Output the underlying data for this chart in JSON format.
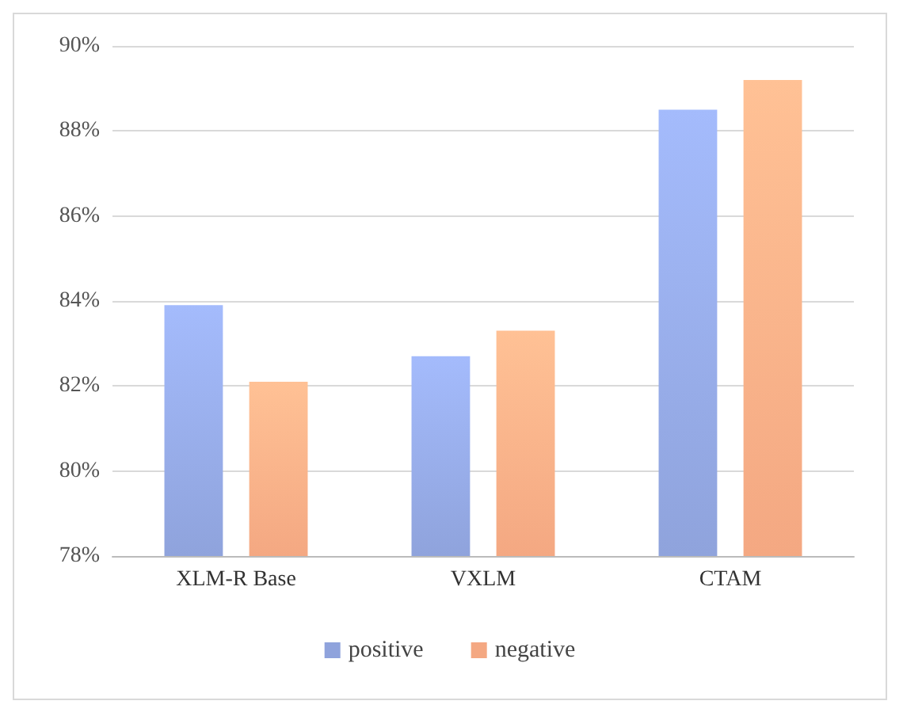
{
  "chart_data": {
    "type": "bar",
    "categories": [
      "XLM-R Base",
      "VXLM",
      "CTAM"
    ],
    "series": [
      {
        "name": "positive",
        "color": "#8fa3dc",
        "values": [
          83.9,
          82.7,
          88.5
        ]
      },
      {
        "name": "negative",
        "color": "#f4a882",
        "values": [
          82.1,
          83.3,
          89.2
        ]
      }
    ],
    "ylim": [
      78,
      90
    ],
    "yticks": [
      {
        "value": 78,
        "label": "78%"
      },
      {
        "value": 80,
        "label": "80%"
      },
      {
        "value": 82,
        "label": "82%"
      },
      {
        "value": 84,
        "label": "84%"
      },
      {
        "value": 86,
        "label": "86%"
      },
      {
        "value": 88,
        "label": "88%"
      },
      {
        "value": 90,
        "label": "90%"
      }
    ],
    "grid": "y",
    "legend": "bottom"
  }
}
